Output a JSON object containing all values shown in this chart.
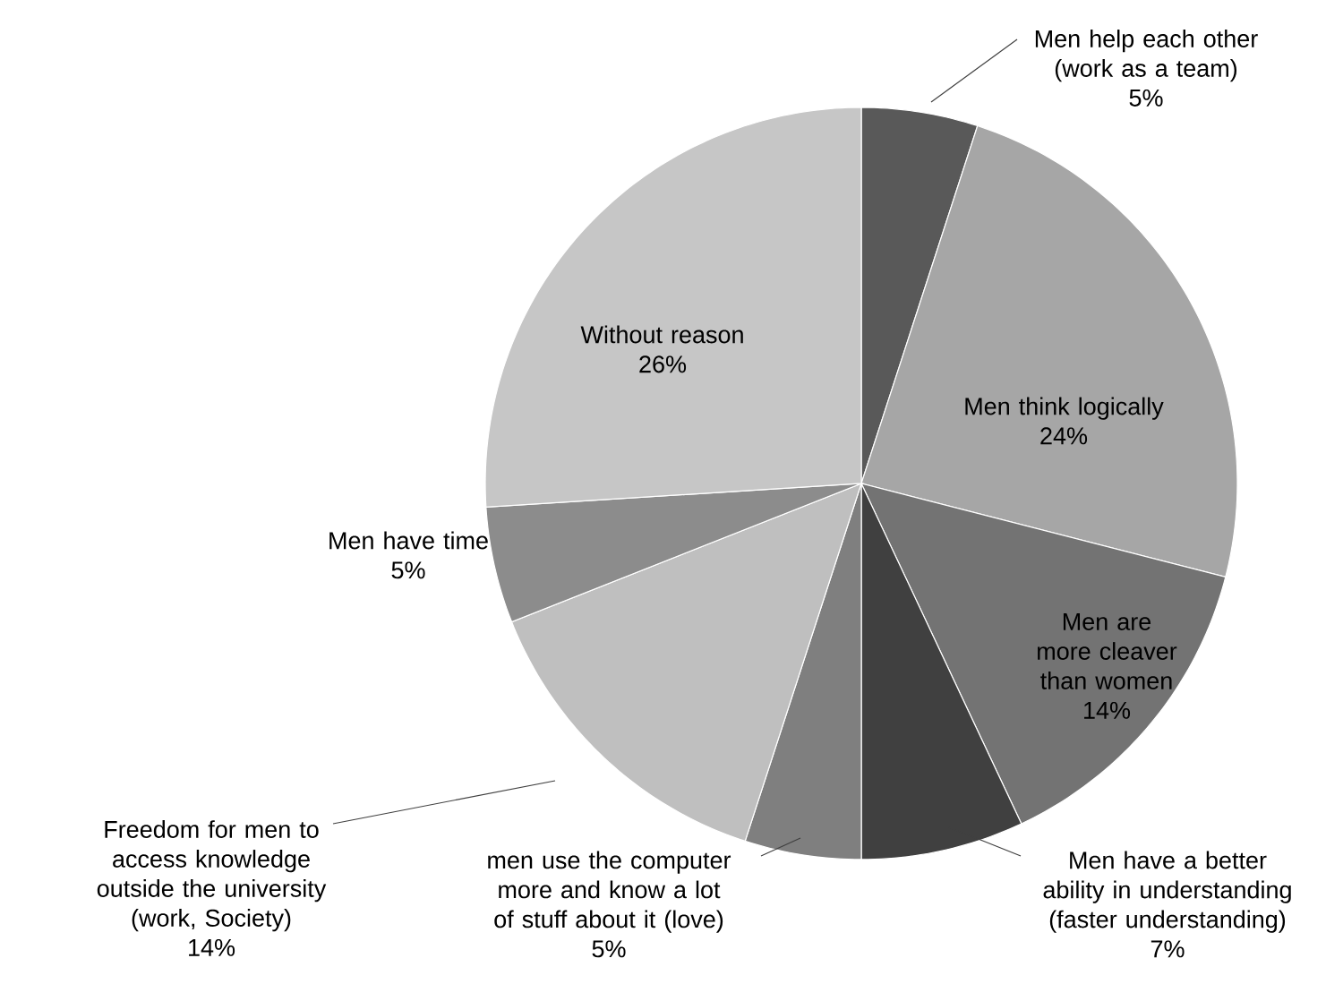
{
  "chart_data": {
    "type": "pie",
    "categories": [
      "Men help each other (work as a team)",
      "Men think logically",
      "Men are more cleaver than women",
      "Men have a better ability in understanding (faster understanding)",
      "men use the computer more and know a lot of stuff about it (love)",
      "Freedom for men to access knowledge outside the university (work, Society)",
      "Men have time",
      "Without reason"
    ],
    "values": [
      5,
      24,
      14,
      7,
      5,
      14,
      5,
      26
    ],
    "value_labels": [
      "5%",
      "24%",
      "14%",
      "7%",
      "5%",
      "14%",
      "5%",
      "26%"
    ],
    "colors": [
      "#595959",
      "#a6a6a6",
      "#737373",
      "#404040",
      "#7f7f7f",
      "#bfbfbf",
      "#8c8c8c",
      "#c6c6c6"
    ]
  }
}
